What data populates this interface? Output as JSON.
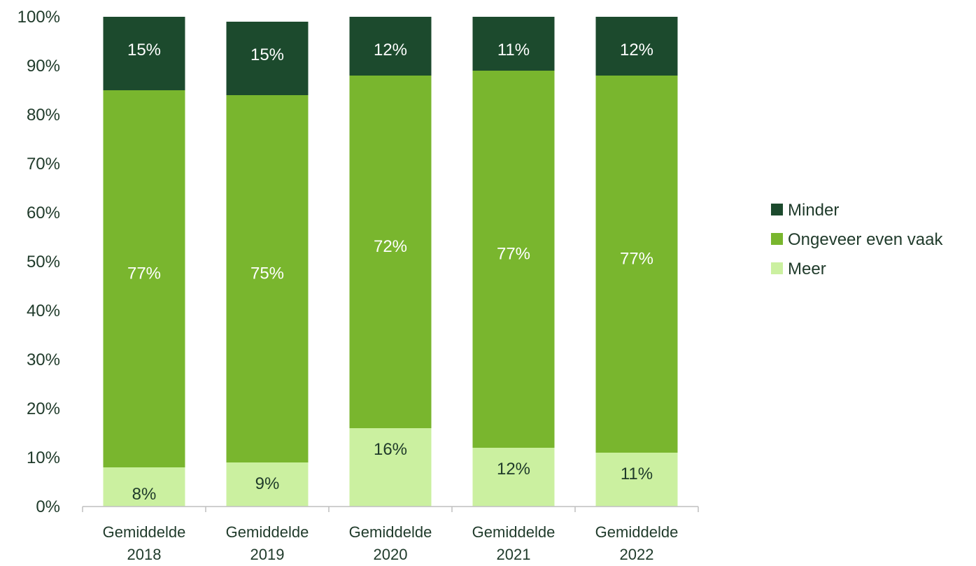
{
  "chart_data": {
    "type": "bar",
    "stacked": true,
    "percent_stacked": true,
    "categories": [
      [
        "Gemiddelde",
        "2018"
      ],
      [
        "Gemiddelde",
        "2019"
      ],
      [
        "Gemiddelde",
        "2020"
      ],
      [
        "Gemiddelde",
        "2021"
      ],
      [
        "Gemiddelde",
        "2022"
      ]
    ],
    "series": [
      {
        "name": "Meer",
        "values": [
          8,
          9,
          16,
          12,
          11
        ],
        "labels": [
          "8%",
          "9%",
          "16%",
          "12%",
          "11%"
        ],
        "color": "#cbf0a0",
        "label_color": "#1f3a2a"
      },
      {
        "name": "Ongeveer even vaak",
        "values": [
          77,
          75,
          72,
          77,
          77
        ],
        "labels": [
          "77%",
          "75%",
          "72%",
          "77%",
          "77%"
        ],
        "color": "#79b62e",
        "label_color": "#ffffff"
      },
      {
        "name": "Minder",
        "values": [
          15,
          15,
          12,
          11,
          12
        ],
        "labels": [
          "15%",
          "15%",
          "12%",
          "11%",
          "12%"
        ],
        "color": "#1c4a2d",
        "label_color": "#ffffff"
      }
    ],
    "y_ticks": [
      "0%",
      "10%",
      "20%",
      "30%",
      "40%",
      "50%",
      "60%",
      "70%",
      "80%",
      "90%",
      "100%"
    ],
    "ylim": [
      0,
      100
    ],
    "legend": {
      "position": "right",
      "order": [
        "Minder",
        "Ongeveer even vaak",
        "Meer"
      ]
    },
    "axis_color": "#bfbfbf",
    "grid": false
  }
}
